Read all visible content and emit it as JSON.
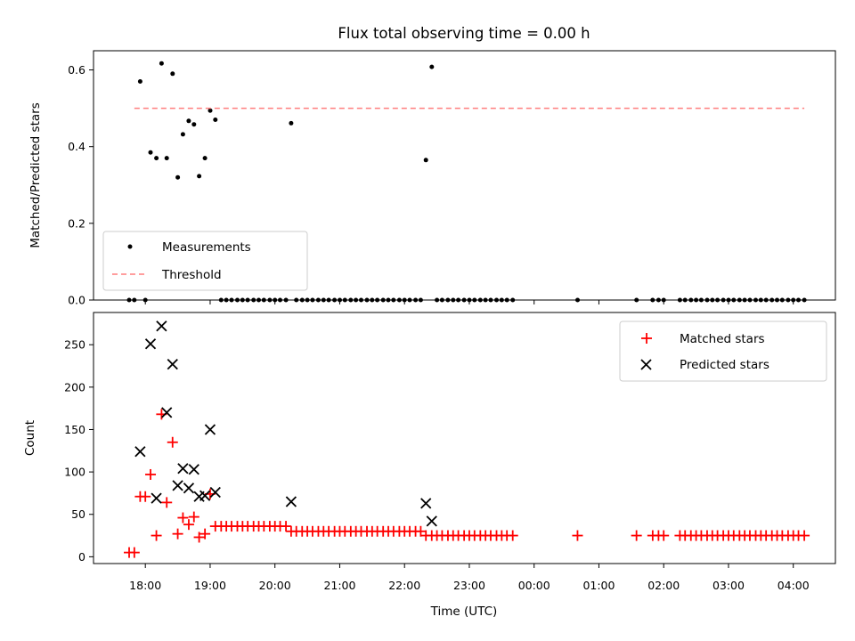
{
  "chart_data": [
    {
      "type": "scatter",
      "title": "Flux total observing time = 0.00 h",
      "xlabel": "",
      "ylabel": "Matched/Predicted stars",
      "ylim": [
        0,
        0.65
      ],
      "yticks": [
        0.0,
        0.2,
        0.4,
        0.6
      ],
      "ytick_labels": [
        "0.0",
        "0.2",
        "0.4",
        "0.6"
      ],
      "grid": false,
      "legend": "lower-left",
      "series": [
        {
          "name": "Measurements",
          "kind": "scatter",
          "marker": "dot",
          "color": "#000000",
          "x": [
            17.75,
            17.83,
            18.0,
            17.92,
            18.08,
            18.17,
            18.25,
            18.33,
            18.42,
            18.5,
            18.58,
            18.67,
            18.75,
            18.83,
            18.92,
            19.0,
            19.08,
            19.17,
            19.25,
            19.33,
            19.42,
            19.5,
            19.58,
            19.67,
            19.75,
            19.83,
            19.92,
            20.0,
            20.08,
            20.17,
            20.25,
            20.33,
            20.42,
            20.5,
            20.58,
            20.67,
            20.75,
            20.83,
            20.92,
            21.0,
            21.08,
            21.17,
            21.25,
            21.33,
            21.42,
            21.5,
            21.58,
            21.67,
            21.75,
            21.83,
            21.92,
            22.0,
            22.08,
            22.17,
            22.25,
            22.33,
            22.42,
            22.5,
            22.58,
            22.67,
            22.75,
            22.83,
            22.92,
            23.0,
            23.08,
            23.17,
            23.25,
            23.33,
            23.42,
            23.5,
            23.58,
            23.67,
            24.67,
            25.58,
            25.83,
            25.92,
            26.0,
            26.25,
            26.33,
            26.42,
            26.5,
            26.58,
            26.67,
            26.75,
            26.83,
            26.92,
            27.0,
            27.08,
            27.17,
            27.25,
            27.33,
            27.42,
            27.5,
            27.58,
            27.67,
            27.75,
            27.83,
            27.92,
            28.0,
            28.08,
            28.17
          ],
          "y": [
            0.0,
            0.0,
            0.0,
            0.57,
            0.385,
            0.37,
            0.617,
            0.37,
            0.59,
            0.32,
            0.432,
            0.467,
            0.458,
            0.323,
            0.37,
            0.494,
            0.47,
            0.0,
            0.0,
            0.0,
            0.0,
            0.0,
            0.0,
            0.0,
            0.0,
            0.0,
            0.0,
            0.0,
            0.0,
            0.0,
            0.461,
            0.0,
            0.0,
            0.0,
            0.0,
            0.0,
            0.0,
            0.0,
            0.0,
            0.0,
            0.0,
            0.0,
            0.0,
            0.0,
            0.0,
            0.0,
            0.0,
            0.0,
            0.0,
            0.0,
            0.0,
            0.0,
            0.0,
            0.0,
            0.0,
            0.365,
            0.608,
            0.0,
            0.0,
            0.0,
            0.0,
            0.0,
            0.0,
            0.0,
            0.0,
            0.0,
            0.0,
            0.0,
            0.0,
            0.0,
            0.0,
            0.0,
            0.0,
            0.0,
            0.0,
            0.0,
            0.0,
            0.0,
            0.0,
            0.0,
            0.0,
            0.0,
            0.0,
            0.0,
            0.0,
            0.0,
            0.0,
            0.0,
            0.0,
            0.0,
            0.0,
            0.0,
            0.0,
            0.0,
            0.0,
            0.0,
            0.0,
            0.0,
            0.0,
            0.0,
            0.0
          ]
        },
        {
          "name": "Threshold",
          "kind": "line",
          "style": "dashed",
          "color": "#ff7f7f",
          "x": [
            17.83,
            28.17
          ],
          "y": [
            0.5,
            0.5
          ]
        }
      ]
    },
    {
      "type": "scatter",
      "title": "",
      "xlabel": "Time (UTC)",
      "ylabel": "Count",
      "xlim": [
        17.2,
        28.65
      ],
      "ylim": [
        -8,
        288
      ],
      "yticks": [
        0,
        50,
        100,
        150,
        200,
        250
      ],
      "ytick_labels": [
        "0",
        "50",
        "100",
        "150",
        "200",
        "250"
      ],
      "xticks": [
        18,
        19,
        20,
        21,
        22,
        23,
        24,
        25,
        26,
        27,
        28
      ],
      "xtick_labels": [
        "18:00",
        "19:00",
        "20:00",
        "21:00",
        "22:00",
        "23:00",
        "00:00",
        "01:00",
        "02:00",
        "03:00",
        "04:00"
      ],
      "grid": false,
      "legend": "upper-right",
      "series": [
        {
          "name": "Matched stars",
          "kind": "scatter",
          "marker": "plus",
          "color": "#ff0000",
          "x": [
            17.75,
            17.83,
            17.92,
            18.0,
            18.08,
            18.17,
            18.25,
            18.33,
            18.42,
            18.5,
            18.58,
            18.67,
            18.75,
            18.83,
            18.92,
            19.0,
            19.08,
            19.17,
            19.25,
            19.33,
            19.42,
            19.5,
            19.58,
            19.67,
            19.75,
            19.83,
            19.92,
            20.0,
            20.08,
            20.17,
            20.25,
            20.33,
            20.42,
            20.5,
            20.58,
            20.67,
            20.75,
            20.83,
            20.92,
            21.0,
            21.08,
            21.17,
            21.25,
            21.33,
            21.42,
            21.5,
            21.58,
            21.67,
            21.75,
            21.83,
            21.92,
            22.0,
            22.08,
            22.17,
            22.25,
            22.33,
            22.42,
            22.5,
            22.58,
            22.67,
            22.75,
            22.83,
            22.92,
            23.0,
            23.08,
            23.17,
            23.25,
            23.33,
            23.42,
            23.5,
            23.58,
            23.67,
            24.67,
            25.58,
            25.83,
            25.92,
            26.0,
            26.25,
            26.33,
            26.42,
            26.5,
            26.58,
            26.67,
            26.75,
            26.83,
            26.92,
            27.0,
            27.08,
            27.17,
            27.25,
            27.33,
            27.42,
            27.5,
            27.58,
            27.67,
            27.75,
            27.83,
            27.92,
            28.0,
            28.08,
            28.17
          ],
          "y": [
            5,
            5,
            71,
            71,
            97,
            25,
            168,
            64,
            135,
            27,
            46,
            38,
            47,
            23,
            27,
            74,
            36,
            36,
            36,
            36,
            36,
            36,
            36,
            36,
            36,
            36,
            36,
            36,
            36,
            36,
            30,
            30,
            30,
            30,
            30,
            30,
            30,
            30,
            30,
            30,
            30,
            30,
            30,
            30,
            30,
            30,
            30,
            30,
            30,
            30,
            30,
            30,
            30,
            30,
            30,
            25,
            25,
            25,
            25,
            25,
            25,
            25,
            25,
            25,
            25,
            25,
            25,
            25,
            25,
            25,
            25,
            25,
            25,
            25,
            25,
            25,
            25,
            25,
            25,
            25,
            25,
            25,
            25,
            25,
            25,
            25,
            25,
            25,
            25,
            25,
            25,
            25,
            25,
            25,
            25,
            25,
            25,
            25,
            25,
            25,
            25
          ]
        },
        {
          "name": "Predicted stars",
          "kind": "scatter",
          "marker": "x",
          "color": "#000000",
          "x": [
            17.92,
            18.08,
            18.17,
            18.25,
            18.33,
            18.42,
            18.5,
            18.58,
            18.67,
            18.75,
            18.83,
            18.92,
            19.0,
            19.08,
            20.25,
            22.33,
            22.42
          ],
          "y": [
            124,
            251,
            69,
            272,
            170,
            227,
            84,
            104,
            81,
            103,
            71,
            72,
            150,
            76,
            65,
            63,
            42
          ]
        }
      ]
    }
  ]
}
